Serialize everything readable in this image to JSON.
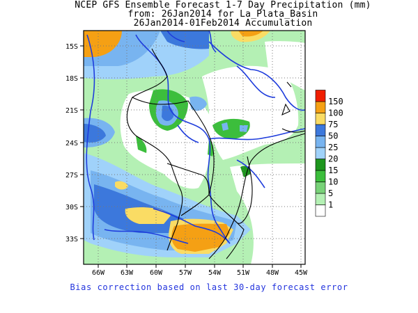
{
  "title": {
    "line1": "NCEP GFS Ensemble Forecast 1-7 Day Precipitation (mm)",
    "line2": "from: 26Jan2014   for La_Plata_Basin",
    "line3": "26Jan2014-01Feb2014 Accumulation"
  },
  "axes": {
    "lat_labels": [
      "15S",
      "18S",
      "21S",
      "24S",
      "27S",
      "30S",
      "33S"
    ],
    "lon_labels": [
      "66W",
      "63W",
      "60W",
      "57W",
      "54W",
      "51W",
      "48W",
      "45W"
    ]
  },
  "legend": {
    "levels": [
      "1",
      "5",
      "10",
      "15",
      "20",
      "25",
      "50",
      "75",
      "100",
      "150"
    ],
    "colors": [
      "#ffffff",
      "#b4f0b4",
      "#78d278",
      "#3cbe3c",
      "#1e961e",
      "#a0d2fa",
      "#78b4f0",
      "#3c78dc",
      "#fadc64",
      "#f5a014",
      "#f01e00"
    ]
  },
  "footer": "Bias correction based on last 30-day forecast error",
  "colors": {
    "border": "#000000",
    "rivers": "#1e3cdc",
    "footer_text": "#2233dd"
  }
}
